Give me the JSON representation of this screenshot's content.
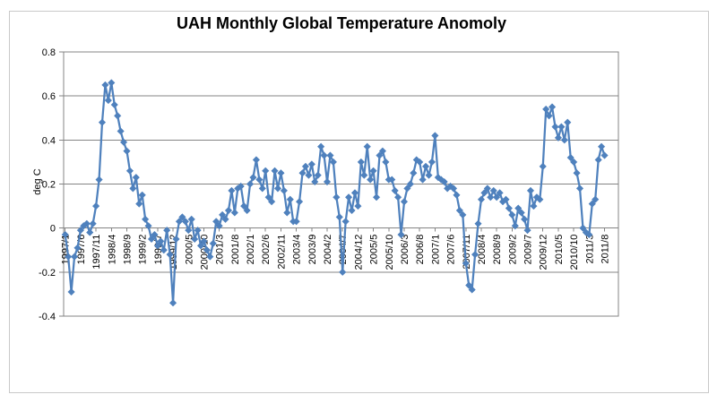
{
  "chart": {
    "title": "UAH Monthly Global Temperature Anomoly",
    "colors": {
      "series": "#4f81bd",
      "gridline": "#848484",
      "plot_border": "#848484",
      "outer_frame": "#c9c9c9",
      "text": "#000000",
      "background": "#ffffff"
    }
  },
  "chart_data": {
    "type": "line",
    "title": "UAH Monthly Global Temperature Anomoly",
    "xlabel": "",
    "ylabel": "deg C",
    "ylim": [
      -0.4,
      0.8
    ],
    "y_ticks": [
      "0.8",
      "0.6",
      "0.4",
      "0.2",
      "0",
      "-0.2",
      "-0.4"
    ],
    "y_tick_values": [
      0.8,
      0.6,
      0.4,
      0.2,
      0,
      -0.2,
      -0.4
    ],
    "grid": true,
    "legend": "none",
    "marker": "diamond",
    "x_tick_every": 5,
    "x_tick_labels": [
      "1997/1",
      "1997/6",
      "1997/11",
      "1998/4",
      "1998/9",
      "1999/2",
      "1999/7",
      "1999/12",
      "2000/5",
      "2000/10",
      "2001/3",
      "2001/8",
      "2002/1",
      "2002/6",
      "2002/11",
      "2003/4",
      "2003/9",
      "2004/2",
      "2004/7",
      "2004/12",
      "2005/5",
      "2005/10",
      "2006/3",
      "2006/8",
      "2007/1",
      "2007/6",
      "2007/11",
      "2008/4",
      "2008/9",
      "2009/2",
      "2009/7",
      "2009/12",
      "2010/5",
      "2010/10",
      "2011/3",
      "2011/8"
    ],
    "start_month": "1997/1",
    "end_month": "2011/8",
    "trailing_empty_categories": 4,
    "series_name": "UAH monthly global temperature anomaly",
    "values_by_year": {
      "1997": [
        -0.03,
        -0.13,
        -0.29,
        -0.13,
        -0.09,
        -0.01,
        0.01,
        0.02,
        -0.02,
        0.02,
        0.1,
        0.22
      ],
      "1998": [
        0.48,
        0.65,
        0.58,
        0.66,
        0.56,
        0.51,
        0.44,
        0.39,
        0.35,
        0.26,
        0.18,
        0.23
      ],
      "1999": [
        0.11,
        0.15,
        0.04,
        0.01,
        -0.05,
        -0.03,
        -0.08,
        -0.06,
        -0.1,
        -0.01,
        -0.12,
        -0.34
      ],
      "2000": [
        -0.05,
        0.03,
        0.05,
        0.03,
        -0.01,
        0.04,
        -0.05,
        -0.01,
        -0.08,
        -0.06,
        -0.1,
        -0.13
      ],
      "2001": [
        -0.07,
        0.03,
        0.01,
        0.06,
        0.04,
        0.08,
        0.17,
        0.07,
        0.18,
        0.19,
        0.1,
        0.08
      ],
      "2002": [
        0.2,
        0.23,
        0.31,
        0.22,
        0.18,
        0.26,
        0.14,
        0.12,
        0.26,
        0.18,
        0.25,
        0.17
      ],
      "2003": [
        0.07,
        0.13,
        0.03,
        0.03,
        0.12,
        0.25,
        0.28,
        0.24,
        0.29,
        0.21,
        0.24,
        0.37
      ],
      "2004": [
        0.33,
        0.21,
        0.33,
        0.3,
        0.14,
        0.05,
        -0.2,
        0.03,
        0.14,
        0.08,
        0.16,
        0.1
      ],
      "2005": [
        0.3,
        0.24,
        0.37,
        0.22,
        0.26,
        0.14,
        0.33,
        0.35,
        0.3,
        0.22,
        0.22,
        0.17
      ],
      "2006": [
        0.14,
        -0.03,
        0.12,
        0.18,
        0.2,
        0.25,
        0.31,
        0.3,
        0.22,
        0.28,
        0.24,
        0.3
      ],
      "2007": [
        0.42,
        0.23,
        0.22,
        0.21,
        0.18,
        0.19,
        0.18,
        0.15,
        0.08,
        0.06,
        -0.16,
        -0.26
      ],
      "2008": [
        -0.28,
        -0.12,
        0.02,
        0.13,
        0.16,
        0.18,
        0.14,
        0.17,
        0.14,
        0.16,
        0.12,
        0.13
      ],
      "2009": [
        0.09,
        0.06,
        0.01,
        0.09,
        0.07,
        0.04,
        -0.01,
        0.17,
        0.1,
        0.14,
        0.13,
        0.28
      ],
      "2010": [
        0.54,
        0.51,
        0.55,
        0.46,
        0.41,
        0.46,
        0.4,
        0.48,
        0.32,
        0.3,
        0.25,
        0.18
      ],
      "2011": [
        0.0,
        -0.02,
        -0.03,
        0.11,
        0.13,
        0.31,
        0.37,
        0.33
      ]
    }
  }
}
